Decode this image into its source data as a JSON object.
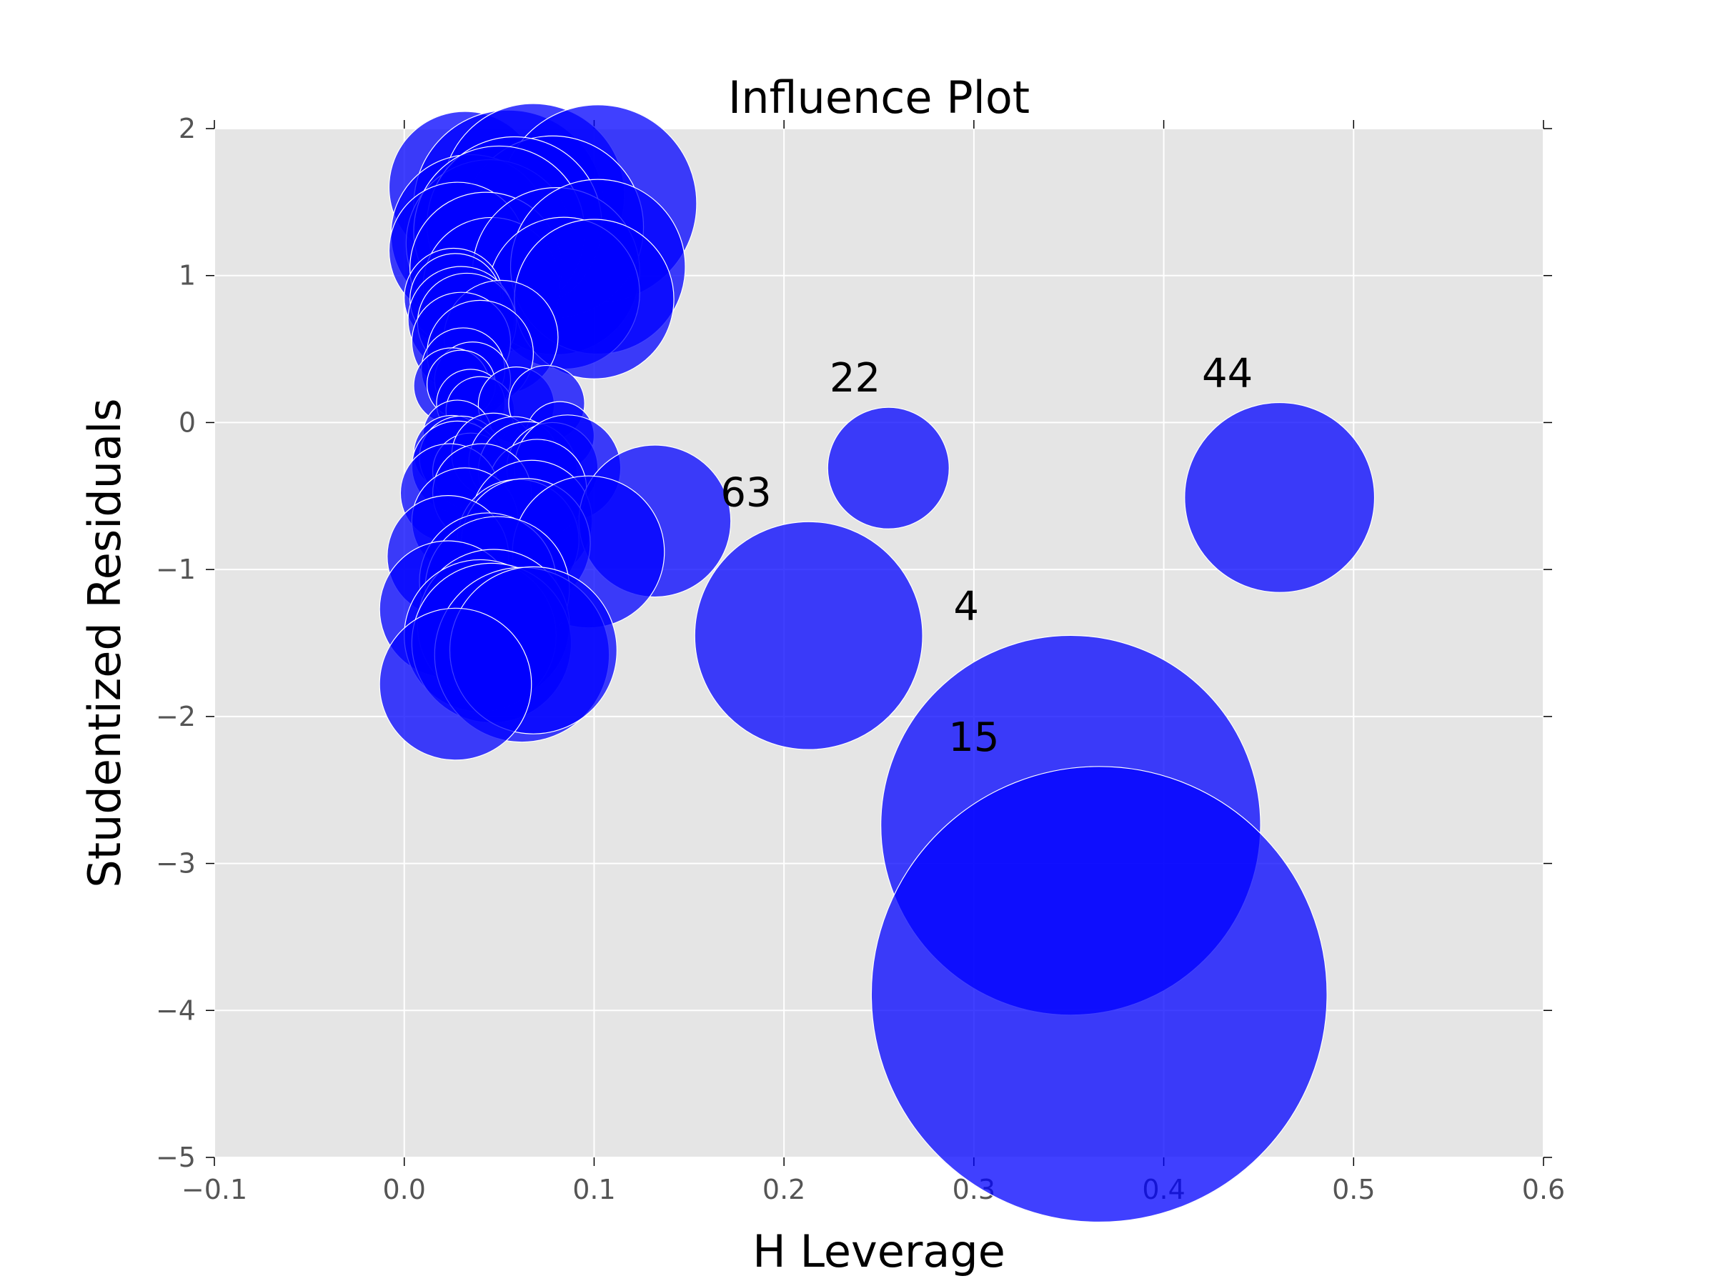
{
  "chart_data": {
    "type": "scatter",
    "title": "Influence Plot",
    "xlabel": "H Leverage",
    "ylabel": "Studentized Residuals",
    "xlim": [
      -0.1,
      0.6
    ],
    "ylim": [
      -5,
      2
    ],
    "xticks": [
      -0.1,
      0.0,
      0.1,
      0.2,
      0.3,
      0.4,
      0.5,
      0.6
    ],
    "xtick_labels": [
      "−0.1",
      "0.0",
      "0.1",
      "0.2",
      "0.3",
      "0.4",
      "0.5",
      "0.6"
    ],
    "yticks": [
      2,
      1,
      0,
      -1,
      -2,
      -3,
      -4,
      -5
    ],
    "ytick_labels": [
      "2",
      "1",
      "0",
      "−1",
      "−2",
      "−3",
      "−4",
      "−5"
    ],
    "grid": true,
    "colors": {
      "background": "#e5e5e5",
      "grid": "#ffffff",
      "marker": "#0000ff",
      "marker_alpha": 0.75
    },
    "points": [
      {
        "x": 0.032,
        "y": 1.6,
        "size": 0.04
      },
      {
        "x": 0.055,
        "y": 1.48,
        "size": 0.05
      },
      {
        "x": 0.068,
        "y": 1.55,
        "size": 0.048
      },
      {
        "x": 0.102,
        "y": 1.49,
        "size": 0.052
      },
      {
        "x": 0.078,
        "y": 1.33,
        "size": 0.048
      },
      {
        "x": 0.035,
        "y": 1.28,
        "size": 0.042
      },
      {
        "x": 0.045,
        "y": 1.22,
        "size": 0.044
      },
      {
        "x": 0.058,
        "y": 1.35,
        "size": 0.046
      },
      {
        "x": 0.05,
        "y": 1.3,
        "size": 0.045
      },
      {
        "x": 0.028,
        "y": 1.17,
        "size": 0.036
      },
      {
        "x": 0.043,
        "y": 1.05,
        "size": 0.04
      },
      {
        "x": 0.046,
        "y": 0.93,
        "size": 0.036
      },
      {
        "x": 0.08,
        "y": 1.03,
        "size": 0.044
      },
      {
        "x": 0.102,
        "y": 1.06,
        "size": 0.046
      },
      {
        "x": 0.084,
        "y": 0.88,
        "size": 0.04
      },
      {
        "x": 0.1,
        "y": 0.84,
        "size": 0.042
      },
      {
        "x": 0.026,
        "y": 0.85,
        "size": 0.026
      },
      {
        "x": 0.027,
        "y": 0.84,
        "size": 0.024
      },
      {
        "x": 0.03,
        "y": 0.7,
        "size": 0.028
      },
      {
        "x": 0.033,
        "y": 0.68,
        "size": 0.026
      },
      {
        "x": 0.051,
        "y": 0.58,
        "size": 0.03
      },
      {
        "x": 0.03,
        "y": 0.55,
        "size": 0.026
      },
      {
        "x": 0.04,
        "y": 0.47,
        "size": 0.028
      },
      {
        "x": 0.031,
        "y": 0.36,
        "size": 0.022
      },
      {
        "x": 0.036,
        "y": 0.29,
        "size": 0.02
      },
      {
        "x": 0.025,
        "y": 0.25,
        "size": 0.02
      },
      {
        "x": 0.03,
        "y": 0.26,
        "size": 0.018
      },
      {
        "x": 0.035,
        "y": 0.13,
        "size": 0.018
      },
      {
        "x": 0.04,
        "y": 0.08,
        "size": 0.018
      },
      {
        "x": 0.059,
        "y": 0.12,
        "size": 0.02
      },
      {
        "x": 0.075,
        "y": 0.13,
        "size": 0.02
      },
      {
        "x": 0.082,
        "y": -0.09,
        "size": 0.018
      },
      {
        "x": 0.028,
        "y": -0.08,
        "size": 0.018
      },
      {
        "x": 0.025,
        "y": -0.21,
        "size": 0.02
      },
      {
        "x": 0.03,
        "y": -0.24,
        "size": 0.022
      },
      {
        "x": 0.028,
        "y": -0.3,
        "size": 0.024
      },
      {
        "x": 0.035,
        "y": -0.33,
        "size": 0.02
      },
      {
        "x": 0.047,
        "y": -0.22,
        "size": 0.022
      },
      {
        "x": 0.058,
        "y": -0.27,
        "size": 0.024
      },
      {
        "x": 0.065,
        "y": -0.33,
        "size": 0.026
      },
      {
        "x": 0.078,
        "y": -0.31,
        "size": 0.024
      },
      {
        "x": 0.086,
        "y": -0.31,
        "size": 0.028
      },
      {
        "x": 0.07,
        "y": -0.45,
        "size": 0.026
      },
      {
        "x": 0.024,
        "y": -0.48,
        "size": 0.026
      },
      {
        "x": 0.041,
        "y": -0.48,
        "size": 0.026
      },
      {
        "x": 0.032,
        "y": -0.67,
        "size": 0.028
      },
      {
        "x": 0.067,
        "y": -0.67,
        "size": 0.032
      },
      {
        "x": 0.132,
        "y": -0.67,
        "size": 0.04
      },
      {
        "x": 0.06,
        "y": -0.8,
        "size": 0.032
      },
      {
        "x": 0.064,
        "y": -0.82,
        "size": 0.034
      },
      {
        "x": 0.097,
        "y": -0.88,
        "size": 0.04
      },
      {
        "x": 0.023,
        "y": -0.91,
        "size": 0.032
      },
      {
        "x": 0.044,
        "y": -1.08,
        "size": 0.036
      },
      {
        "x": 0.049,
        "y": -1.13,
        "size": 0.038
      },
      {
        "x": 0.023,
        "y": -1.27,
        "size": 0.036
      },
      {
        "x": 0.047,
        "y": -1.38,
        "size": 0.04
      },
      {
        "x": 0.04,
        "y": -1.45,
        "size": 0.04
      },
      {
        "x": 0.046,
        "y": -1.5,
        "size": 0.042
      },
      {
        "x": 0.062,
        "y": -1.58,
        "size": 0.046
      },
      {
        "x": 0.068,
        "y": -1.55,
        "size": 0.044
      },
      {
        "x": 0.027,
        "y": -1.78,
        "size": 0.04
      },
      {
        "x": 0.255,
        "y": -0.31,
        "size": 0.032,
        "label": "22"
      },
      {
        "x": 0.461,
        "y": -0.51,
        "size": 0.05,
        "label": "44"
      },
      {
        "x": 0.213,
        "y": -1.45,
        "size": 0.06,
        "label": "63"
      },
      {
        "x": 0.351,
        "y": -2.74,
        "size": 0.1,
        "label": "4"
      },
      {
        "x": 0.366,
        "y": -3.89,
        "size": 0.12,
        "label": "15"
      }
    ]
  }
}
